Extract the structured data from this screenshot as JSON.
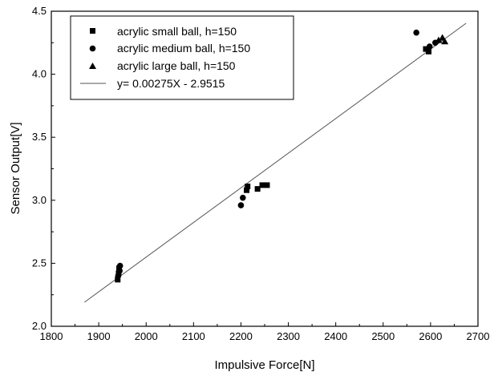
{
  "chart_data": {
    "type": "scatter",
    "xlabel": "Impulsive Force[N]",
    "ylabel": "Sensor Output[V]",
    "xlim": [
      1800,
      2700
    ],
    "ylim": [
      2.0,
      4.5
    ],
    "x_ticks": [
      "1800",
      "1900",
      "2000",
      "2100",
      "2200",
      "2300",
      "2400",
      "2500",
      "2600",
      "2700"
    ],
    "y_ticks": [
      "2.0",
      "2.5",
      "3.0",
      "3.5",
      "4.0",
      "4.5"
    ],
    "grid": false,
    "legend_position": "top-left",
    "series": [
      {
        "name": "acrylic small ball, h=150",
        "marker": "square",
        "points": [
          [
            1940,
            2.37
          ],
          [
            1942,
            2.42
          ],
          [
            1943,
            2.46
          ],
          [
            2212,
            3.08
          ],
          [
            2214,
            3.11
          ],
          [
            2235,
            3.09
          ],
          [
            2245,
            3.12
          ],
          [
            2255,
            3.12
          ],
          [
            2590,
            4.2
          ],
          [
            2596,
            4.18
          ]
        ]
      },
      {
        "name": "acrylic medium ball, h=150",
        "marker": "circle",
        "points": [
          [
            1941,
            2.4
          ],
          [
            1944,
            2.44
          ],
          [
            1945,
            2.48
          ],
          [
            2200,
            2.96
          ],
          [
            2204,
            3.02
          ],
          [
            2570,
            4.33
          ],
          [
            2598,
            4.22
          ],
          [
            2610,
            4.25
          ]
        ]
      },
      {
        "name": "acrylic large ball, h=150",
        "marker": "triangle",
        "points": [
          [
            2617,
            4.27
          ],
          [
            2625,
            4.29
          ],
          [
            2630,
            4.26
          ]
        ]
      }
    ],
    "fit_line": {
      "label": "y= 0.00275X - 2.9515",
      "slope": 0.00275,
      "intercept": -2.9515,
      "x_range": [
        1870,
        2675
      ]
    }
  }
}
